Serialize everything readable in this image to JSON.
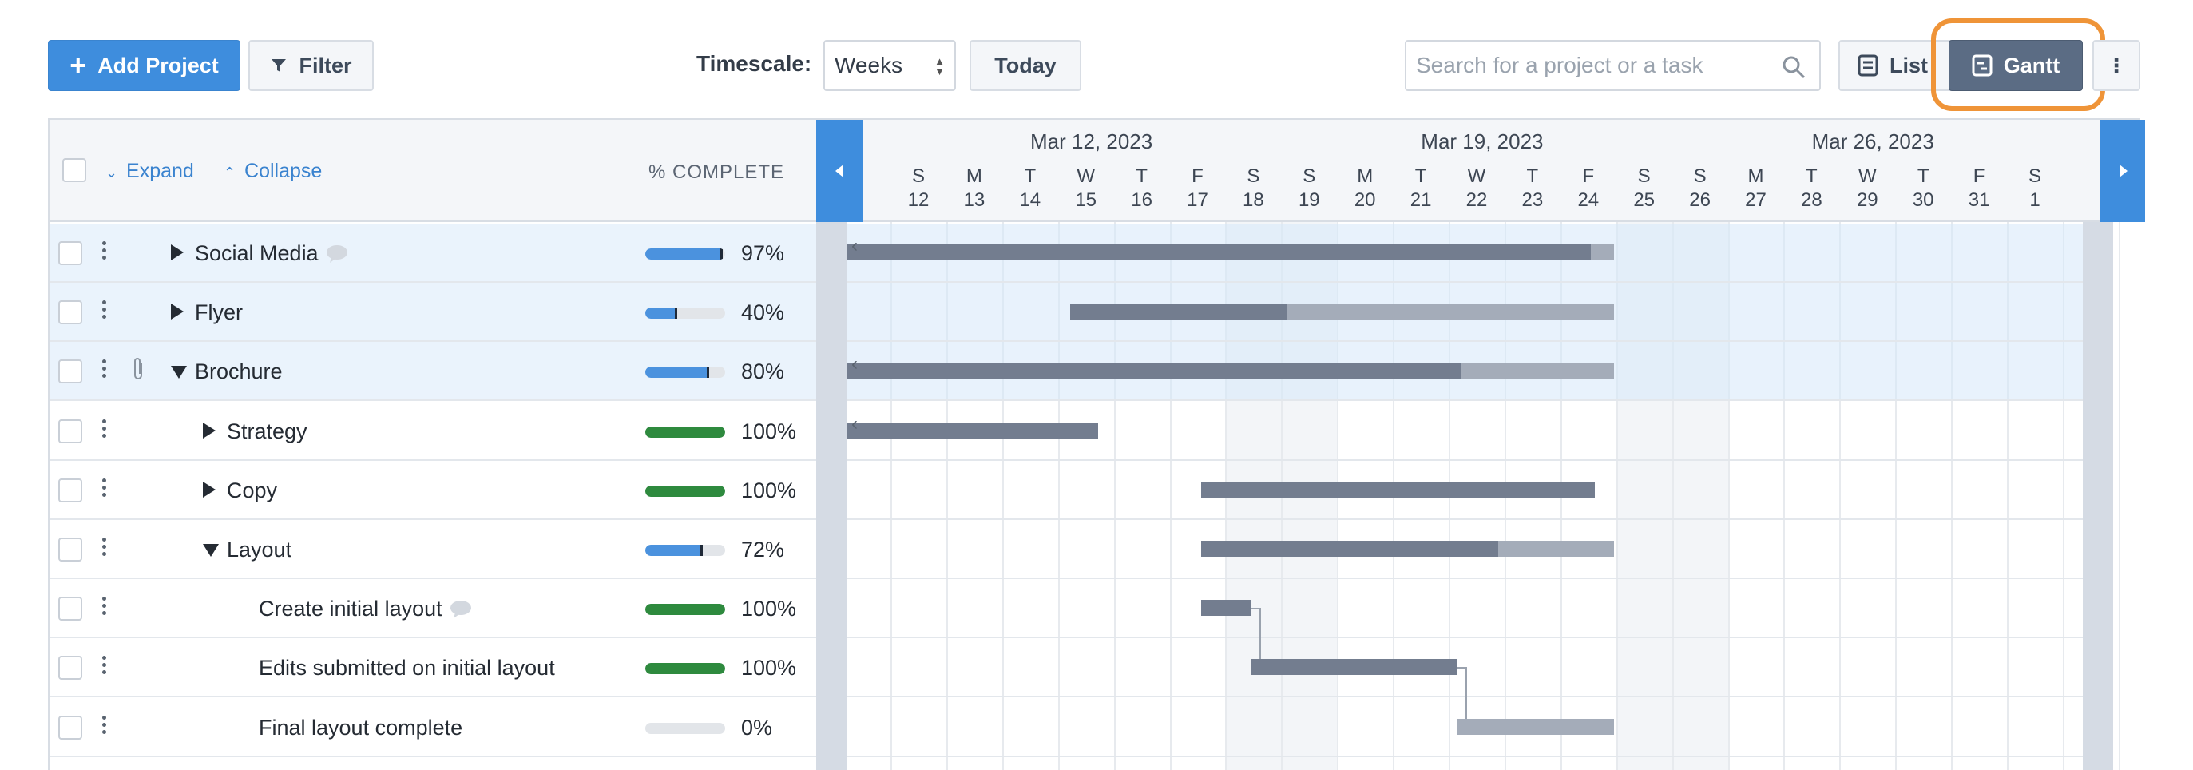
{
  "toolbar": {
    "add_project_label": "Add Project",
    "filter_label": "Filter",
    "timescale_label": "Timescale:",
    "timescale_value": "Weeks",
    "today_label": "Today",
    "search_placeholder": "Search for a project or a task",
    "list_label": "List",
    "gantt_label": "Gantt",
    "more_label": "⋮",
    "accent_color": "#3e8ddd",
    "active_view_color": "#5b6c84",
    "highlight_color": "#ef9438"
  },
  "table": {
    "expand_label": "Expand",
    "collapse_label": "Collapse",
    "percent_header": "% COMPLETE",
    "rows": [
      {
        "name": "Social Media",
        "level": 0,
        "toggle": "collapsed",
        "comment": true,
        "attachment": false,
        "percent": 97,
        "percent_label": "97%",
        "bar_color": "blue",
        "highlighted": true
      },
      {
        "name": "Flyer",
        "level": 0,
        "toggle": "collapsed",
        "comment": false,
        "attachment": false,
        "percent": 40,
        "percent_label": "40%",
        "bar_color": "blue",
        "highlighted": true
      },
      {
        "name": "Brochure",
        "level": 0,
        "toggle": "expanded",
        "comment": false,
        "attachment": true,
        "percent": 80,
        "percent_label": "80%",
        "bar_color": "blue",
        "highlighted": true
      },
      {
        "name": "Strategy",
        "level": 1,
        "toggle": "collapsed",
        "comment": false,
        "attachment": false,
        "percent": 100,
        "percent_label": "100%",
        "bar_color": "green",
        "highlighted": false
      },
      {
        "name": "Copy",
        "level": 1,
        "toggle": "collapsed",
        "comment": false,
        "attachment": false,
        "percent": 100,
        "percent_label": "100%",
        "bar_color": "green",
        "highlighted": false
      },
      {
        "name": "Layout",
        "level": 1,
        "toggle": "expanded",
        "comment": false,
        "attachment": false,
        "percent": 72,
        "percent_label": "72%",
        "bar_color": "blue",
        "highlighted": false
      },
      {
        "name": "Create initial layout",
        "level": 2,
        "toggle": "none",
        "comment": true,
        "attachment": false,
        "percent": 100,
        "percent_label": "100%",
        "bar_color": "green",
        "highlighted": false
      },
      {
        "name": "Edits submitted on initial layout",
        "level": 2,
        "toggle": "none",
        "comment": false,
        "attachment": false,
        "percent": 100,
        "percent_label": "100%",
        "bar_color": "green",
        "highlighted": false
      },
      {
        "name": "Final layout complete",
        "level": 2,
        "toggle": "none",
        "comment": false,
        "attachment": false,
        "percent": 0,
        "percent_label": "0%",
        "bar_color": "grey",
        "highlighted": false
      }
    ]
  },
  "gantt": {
    "weeks": [
      "Mar 12, 2023",
      "Mar 19, 2023",
      "Mar 26, 2023"
    ],
    "days": [
      {
        "letter": "S",
        "num": "12"
      },
      {
        "letter": "M",
        "num": "13"
      },
      {
        "letter": "T",
        "num": "14"
      },
      {
        "letter": "W",
        "num": "15"
      },
      {
        "letter": "T",
        "num": "16"
      },
      {
        "letter": "F",
        "num": "17"
      },
      {
        "letter": "S",
        "num": "18"
      },
      {
        "letter": "S",
        "num": "19"
      },
      {
        "letter": "M",
        "num": "20"
      },
      {
        "letter": "T",
        "num": "21"
      },
      {
        "letter": "W",
        "num": "22"
      },
      {
        "letter": "T",
        "num": "23"
      },
      {
        "letter": "F",
        "num": "24"
      },
      {
        "letter": "S",
        "num": "25"
      },
      {
        "letter": "S",
        "num": "26"
      },
      {
        "letter": "M",
        "num": "27"
      },
      {
        "letter": "T",
        "num": "28"
      },
      {
        "letter": "W",
        "num": "29"
      },
      {
        "letter": "T",
        "num": "30"
      },
      {
        "letter": "F",
        "num": "31"
      },
      {
        "letter": "S",
        "num": "1"
      }
    ],
    "bars": [
      {
        "start": "Mar 11",
        "end": "Mar 25",
        "complete": 97,
        "continues_left": true
      },
      {
        "start": "Mar 15",
        "end": "Mar 25",
        "complete": 40,
        "continues_left": false
      },
      {
        "start": "Mar 11",
        "end": "Mar 25",
        "complete": 80,
        "continues_left": true
      },
      {
        "start": "Mar 11",
        "end": "Mar 15",
        "complete": 100,
        "continues_left": true
      },
      {
        "start": "Mar 17",
        "end": "Mar 24",
        "complete": 100,
        "continues_left": false
      },
      {
        "start": "Mar 17",
        "end": "Mar 25",
        "complete": 72,
        "continues_left": false
      },
      {
        "start": "Mar 17",
        "end": "Mar 19",
        "complete": 100,
        "continues_left": false
      },
      {
        "start": "Mar 19",
        "end": "Mar 22",
        "complete": 100,
        "continues_left": false
      },
      {
        "start": "Mar 22",
        "end": "Mar 25",
        "complete": 0,
        "continues_left": false
      }
    ]
  }
}
